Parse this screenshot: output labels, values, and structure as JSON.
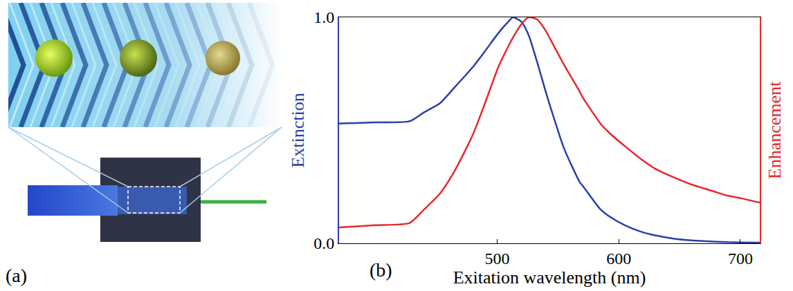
{
  "illustration": {
    "label": "(a)"
  },
  "chart_data": {
    "type": "line",
    "annotations": [
      {
        "text": "(b)"
      }
    ],
    "x_label": "Exitation wavelength (nm)",
    "y_label": "Extinction",
    "y2_label": "Enhancement",
    "xlim": [
      370,
      716
    ],
    "xticks": [
      500,
      600,
      700
    ],
    "ylim": [
      0,
      1
    ],
    "yticks": [
      {
        "value": 0,
        "label": "0.0"
      },
      {
        "value": 1,
        "label": "1.0"
      }
    ],
    "y2lim": [
      0,
      1
    ],
    "y2ticks": [],
    "grid": false,
    "x": [
      370,
      400,
      428,
      440,
      453,
      465,
      480,
      490,
      501,
      510,
      513,
      520,
      526,
      533,
      540,
      544,
      555,
      568,
      571,
      585,
      592,
      605,
      619,
      630,
      646,
      660,
      678,
      690,
      700,
      716
    ],
    "series": [
      {
        "color": "#2b3fa8",
        "values": [
          0.53,
          0.535,
          0.54,
          0.58,
          0.62,
          0.69,
          0.78,
          0.85,
          0.93,
          0.985,
          1.0,
          0.98,
          0.92,
          0.8,
          0.67,
          0.6,
          0.42,
          0.27,
          0.25,
          0.15,
          0.12,
          0.08,
          0.05,
          0.035,
          0.02,
          0.013,
          0.008,
          0.005,
          0.004,
          0.003
        ]
      },
      {
        "color": "#e8262d",
        "axis": "y2",
        "values": [
          0.07,
          0.08,
          0.09,
          0.15,
          0.22,
          0.32,
          0.48,
          0.62,
          0.78,
          0.88,
          0.91,
          0.97,
          1.0,
          0.99,
          0.94,
          0.9,
          0.79,
          0.67,
          0.64,
          0.53,
          0.49,
          0.43,
          0.37,
          0.33,
          0.29,
          0.26,
          0.23,
          0.21,
          0.2,
          0.18
        ]
      }
    ]
  }
}
